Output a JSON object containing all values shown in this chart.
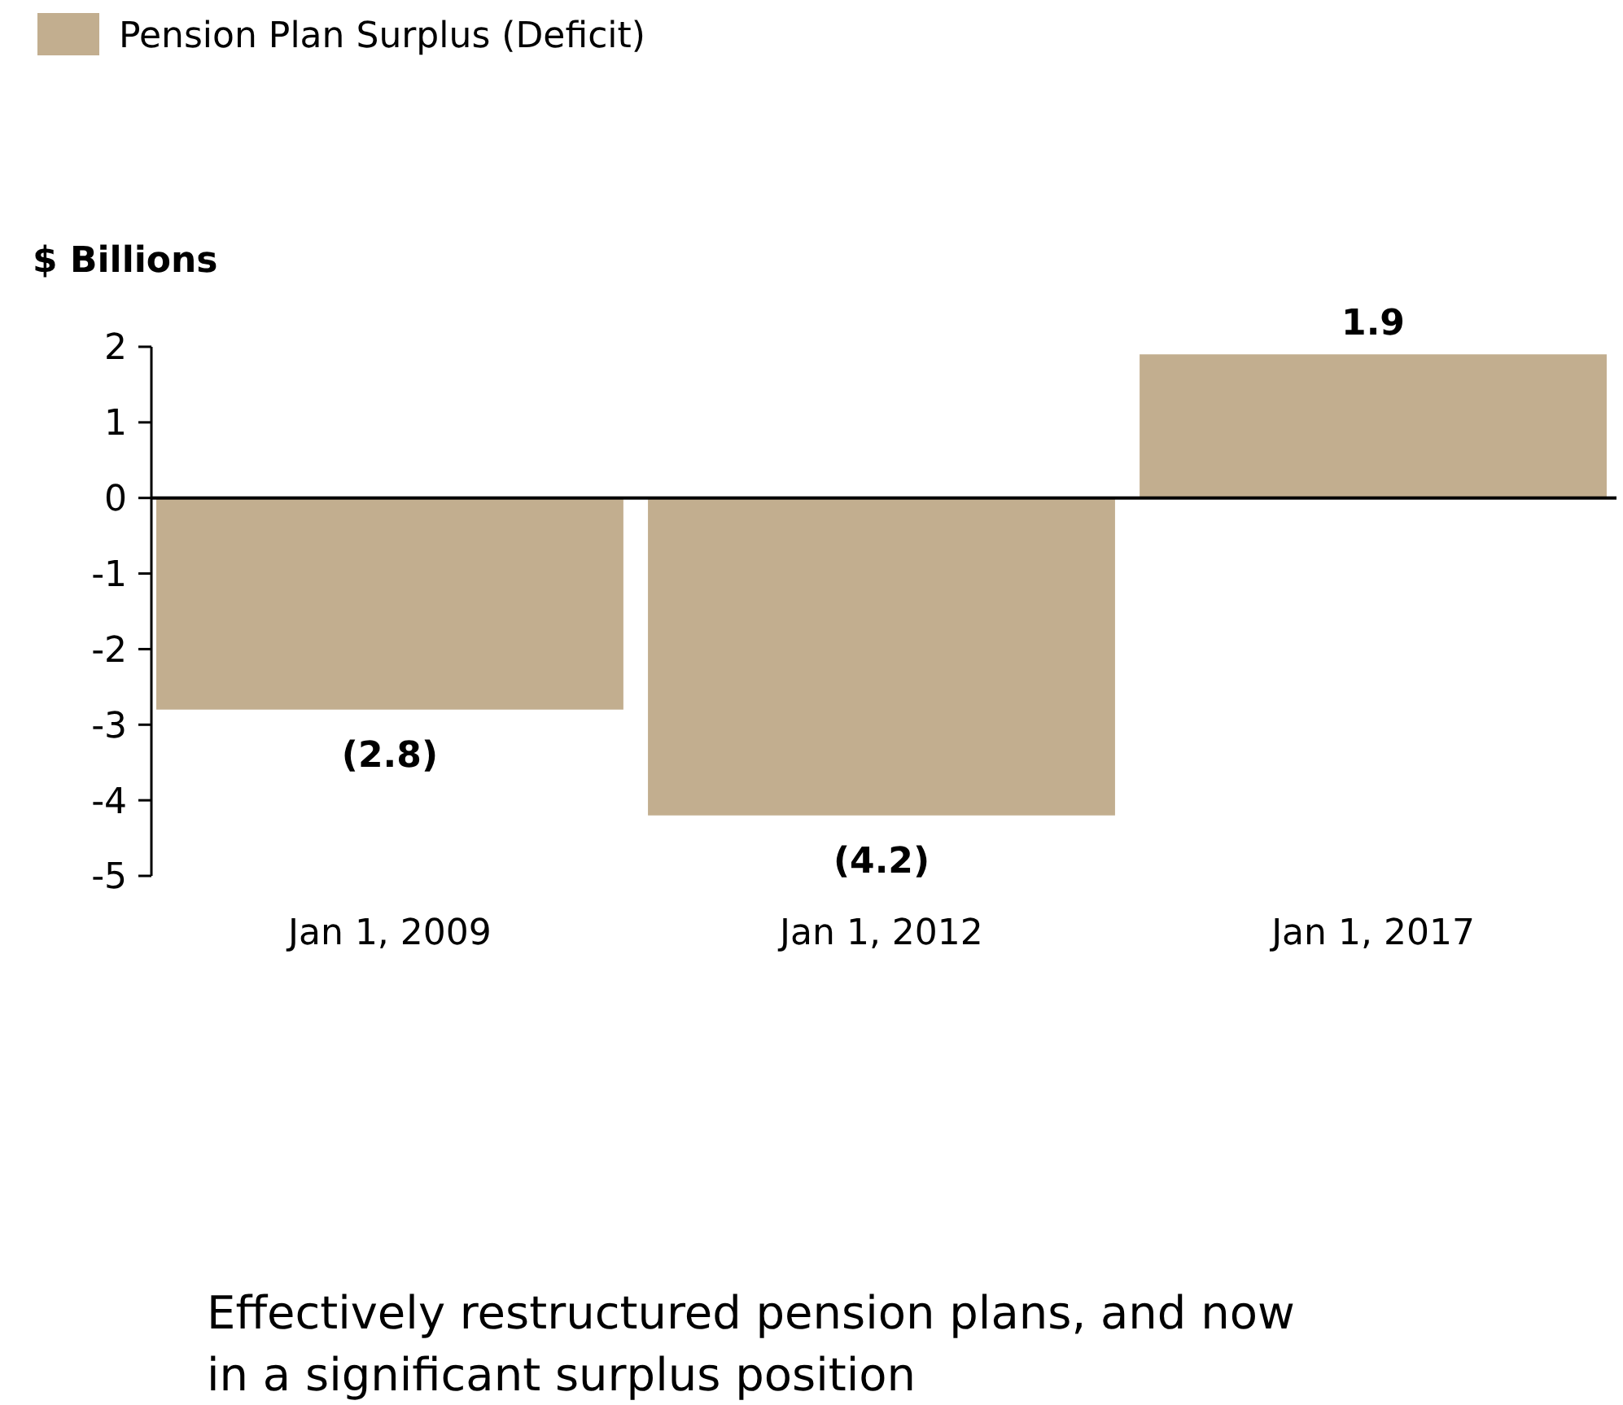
{
  "chart_data": {
    "type": "bar",
    "ylabel": "$ Billions",
    "categories": [
      "Jan 1, 2009",
      "Jan 1, 2012",
      "Jan 1, 2017"
    ],
    "series": [
      {
        "name": "Pension Plan Surplus (Deficit)",
        "color": "#c2ae8f",
        "values": [
          -2.8,
          -4.2,
          1.9
        ],
        "value_labels": [
          "(2.8)",
          "(4.2)",
          "1.9"
        ]
      }
    ],
    "ylim": [
      -5,
      2
    ],
    "yticks": [
      -5,
      -4,
      -3,
      -2,
      -1,
      0,
      1,
      2
    ],
    "legend": "top left",
    "annotations": [
      "Effectively restructured pension plans, and now in a significant surplus position"
    ]
  }
}
